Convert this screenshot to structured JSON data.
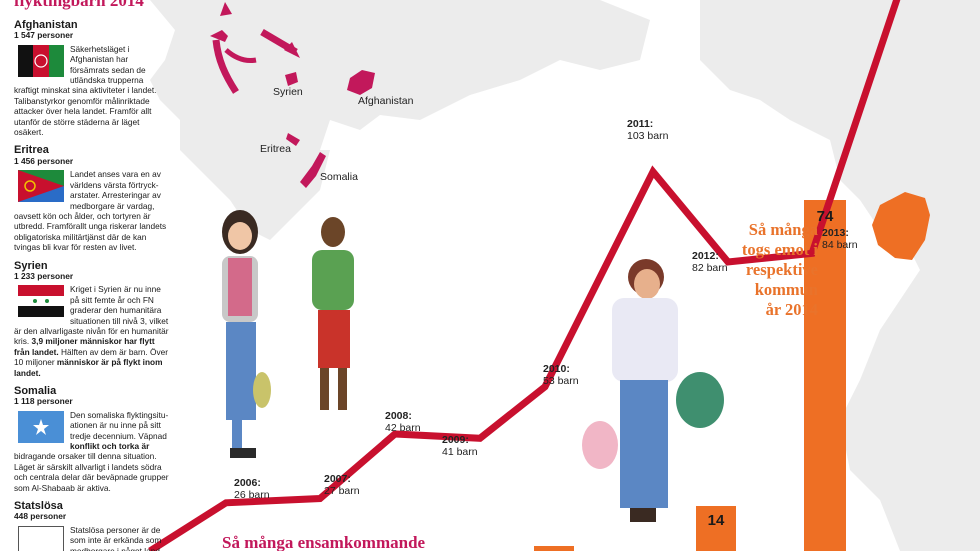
{
  "header": {
    "title_fragment": "flyktingbarn 2014"
  },
  "countries": [
    {
      "name": "Afghanistan",
      "count": "1 547 personer",
      "desc": "Säkerhetsläget i Afghanistan har försämrats sedan de utländska trupperna kraftigt minskat sina aktiviteter i landet. Talibanstyrkor genomför målinriktade attacker över hela landet. Framför allt utanför de större städerna är läget osäkert."
    },
    {
      "name": "Eritrea",
      "count": "1 456 personer",
      "desc": "Landet anses vara en av världens värsta förtryck-arstater. Arresteringar av medborgare är vardag, oavsett kön och ålder, och tortyren är utbredd. Framförallt unga riskerar landets obligatoriska militärtjänst där de kan tvingas bli kvar för resten av livet."
    },
    {
      "name": "Syrien",
      "count": "1 233 personer",
      "desc": "Kriget i Syrien är nu inne på sitt femte år och FN graderar den humanitära situationen till nivå 3, vilket är den allvarligaste nivån för en humanitär kris.",
      "highlight": "3,9 miljoner människor har flytt från landet.",
      "desc2": "Hälften av dem är barn. Över 10 miljoner",
      "highlight2": "människor är på flykt inom landet."
    },
    {
      "name": "Somalia",
      "count": "1 118 personer",
      "desc": "Den somaliska flyktingsitu-ationen är nu inne på sitt tredje decennium. Väpnad",
      "highlight": "konflikt och torka är",
      "desc2": "bidragande orsaker till denna situation. Läget är särskilt allvarligt i landets södra och centrala delar där beväpnade grupper som Al-Shabaab är aktiva."
    },
    {
      "name": "Statslösa",
      "count": "448 personer",
      "desc": "Statslösa personer är de som inte är erkända som medborgare i något land, med resultatet att de"
    }
  ],
  "map_labels": {
    "syrien": "Syrien",
    "afghanistan": "Afghanistan",
    "eritrea": "Eritrea",
    "somalia": "Somalia"
  },
  "chart_data": {
    "type": "line",
    "x": [
      "2006",
      "2007",
      "2008",
      "2009",
      "2010",
      "2011",
      "2012",
      "2013"
    ],
    "values": [
      26,
      27,
      42,
      41,
      53,
      103,
      82,
      84
    ],
    "labels": [
      "26 barn",
      "27 barn",
      "42 barn",
      "41 barn",
      "53 barn",
      "103 barn",
      "82 barn",
      "84 barn"
    ],
    "title": "Så många ensamkommande",
    "line_color": "#c8102e"
  },
  "orange_text": {
    "l1": "Så många",
    "l2": "togs emot i",
    "l3": "respektive",
    "l4": "kommun",
    "l5": "år 2014"
  },
  "bars": {
    "values": [
      14,
      74
    ],
    "color": "#ee6f24"
  },
  "colors": {
    "magenta": "#c2185b",
    "orange": "#ee6f24",
    "map": "#e9e9e9"
  }
}
